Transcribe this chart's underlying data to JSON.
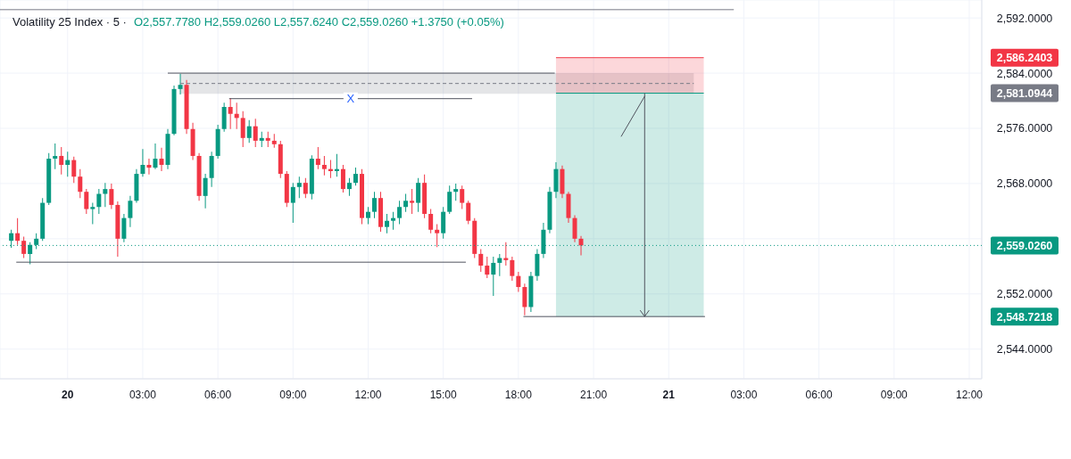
{
  "chart_data": {
    "type": "candlestick",
    "title": "Volatility 25 Index · 5 ·",
    "subtitle": "O2,557.7780 H2,559.0260 L2,557.6240 C2,559.0260 +1.3750 (+0.05%)",
    "x": [
      "--01-19T21:45",
      "--01-19T22:00",
      "--01-19T22:15",
      "--01-19T22:30",
      "--01-19T22:45",
      "--01-19T23:00",
      "--01-19T23:15",
      "--01-19T23:30",
      "--01-19T23:45",
      "--01-20T00:00",
      "--01-20T00:15",
      "--01-20T00:30",
      "--01-20T00:45",
      "--01-20T01:00",
      "--01-20T01:15",
      "--01-20T01:30",
      "--01-20T01:45",
      "--01-20T02:00",
      "--01-20T02:15",
      "--01-20T02:30",
      "--01-20T02:45",
      "--01-20T03:00",
      "--01-20T03:15",
      "--01-20T03:30",
      "--01-20T03:45",
      "--01-20T04:00",
      "--01-20T04:15",
      "--01-20T04:30",
      "--01-20T04:45",
      "--01-20T05:00",
      "--01-20T05:15",
      "--01-20T05:30",
      "--01-20T05:45",
      "--01-20T06:00",
      "--01-20T06:15",
      "--01-20T06:30",
      "--01-20T06:45",
      "--01-20T07:00",
      "--01-20T07:15",
      "--01-20T07:30",
      "--01-20T07:45",
      "--01-20T08:00",
      "--01-20T08:15",
      "--01-20T08:30",
      "--01-20T08:45",
      "--01-20T09:00",
      "--01-20T09:15",
      "--01-20T09:30",
      "--01-20T09:45",
      "--01-20T10:00",
      "--01-20T10:15",
      "--01-20T10:30",
      "--01-20T10:45",
      "--01-20T11:00",
      "--01-20T11:15",
      "--01-20T11:30",
      "--01-20T11:45",
      "--01-20T12:00",
      "--01-20T12:15",
      "--01-20T12:30",
      "--01-20T12:45",
      "--01-20T13:00",
      "--01-20T13:15",
      "--01-20T13:30",
      "--01-20T13:45",
      "--01-20T14:00",
      "--01-20T14:15",
      "--01-20T14:30",
      "--01-20T14:45",
      "--01-20T15:00",
      "--01-20T15:15",
      "--01-20T15:30",
      "--01-20T15:45",
      "--01-20T16:00",
      "--01-20T16:15",
      "--01-20T16:30",
      "--01-20T16:45",
      "--01-20T17:00",
      "--01-20T17:15",
      "--01-20T17:30",
      "--01-20T17:45",
      "--01-20T18:00",
      "--01-20T18:15",
      "--01-20T18:30",
      "--01-20T18:45",
      "--01-20T19:00",
      "--01-20T19:15",
      "--01-20T19:30",
      "--01-20T19:45",
      "--01-20T20:00",
      "--01-20T20:15",
      "--01-20T20:30"
    ],
    "ohlc": [
      [
        2559.7,
        2561.3,
        2558.7,
        2560.8
      ],
      [
        2560.8,
        2563.0,
        2559.1,
        2559.7
      ],
      [
        2559.7,
        2560.3,
        2557.2,
        2557.8
      ],
      [
        2557.8,
        2559.5,
        2556.3,
        2559.1
      ],
      [
        2559.1,
        2560.8,
        2558.5,
        2560.0
      ],
      [
        2560.0,
        2565.9,
        2559.7,
        2565.2
      ],
      [
        2565.2,
        2572.4,
        2564.9,
        2571.6
      ],
      [
        2571.6,
        2573.8,
        2570.1,
        2572.0
      ],
      [
        2572.0,
        2573.3,
        2569.3,
        2570.7
      ],
      [
        2570.7,
        2572.6,
        2569.0,
        2571.4
      ],
      [
        2571.4,
        2571.9,
        2568.1,
        2569.0
      ],
      [
        2569.0,
        2570.1,
        2565.9,
        2566.8
      ],
      [
        2566.8,
        2567.2,
        2563.6,
        2564.3
      ],
      [
        2564.3,
        2565.2,
        2562.1,
        2564.6
      ],
      [
        2564.6,
        2567.2,
        2563.6,
        2566.5
      ],
      [
        2566.5,
        2568.1,
        2564.6,
        2567.2
      ],
      [
        2567.2,
        2568.0,
        2564.3,
        2564.9
      ],
      [
        2564.9,
        2565.4,
        2557.4,
        2560.0
      ],
      [
        2560.0,
        2563.6,
        2559.5,
        2563.0
      ],
      [
        2563.0,
        2566.2,
        2561.7,
        2565.5
      ],
      [
        2565.5,
        2570.1,
        2565.2,
        2569.4
      ],
      [
        2569.4,
        2573.0,
        2569.0,
        2570.7
      ],
      [
        2570.7,
        2571.6,
        2569.3,
        2570.3
      ],
      [
        2570.3,
        2573.8,
        2570.1,
        2571.6
      ],
      [
        2571.6,
        2573.2,
        2569.8,
        2570.7
      ],
      [
        2570.7,
        2575.9,
        2570.1,
        2575.2
      ],
      [
        2575.2,
        2582.2,
        2575.0,
        2581.7
      ],
      [
        2581.7,
        2583.9,
        2580.9,
        2582.3
      ],
      [
        2582.3,
        2583.0,
        2575.2,
        2575.9
      ],
      [
        2575.9,
        2576.8,
        2571.4,
        2572.0
      ],
      [
        2572.0,
        2572.4,
        2565.5,
        2566.2
      ],
      [
        2566.2,
        2569.4,
        2564.4,
        2568.8
      ],
      [
        2568.8,
        2572.6,
        2567.5,
        2572.0
      ],
      [
        2572.0,
        2576.5,
        2571.6,
        2575.9
      ],
      [
        2575.9,
        2579.7,
        2575.5,
        2579.1
      ],
      [
        2579.1,
        2580.4,
        2575.9,
        2578.1
      ],
      [
        2578.1,
        2579.7,
        2575.9,
        2577.5
      ],
      [
        2577.5,
        2578.5,
        2573.3,
        2574.6
      ],
      [
        2574.6,
        2577.2,
        2573.9,
        2576.3
      ],
      [
        2576.3,
        2577.4,
        2573.3,
        2574.2
      ],
      [
        2574.2,
        2575.5,
        2573.3,
        2574.6
      ],
      [
        2574.6,
        2575.5,
        2573.3,
        2574.2
      ],
      [
        2574.2,
        2575.2,
        2573.2,
        2573.7
      ],
      [
        2573.7,
        2574.2,
        2568.8,
        2569.4
      ],
      [
        2569.4,
        2569.8,
        2564.6,
        2565.2
      ],
      [
        2565.2,
        2568.1,
        2562.3,
        2567.5
      ],
      [
        2567.5,
        2569.0,
        2565.9,
        2568.1
      ],
      [
        2568.1,
        2568.8,
        2565.9,
        2566.5
      ],
      [
        2566.5,
        2572.1,
        2565.7,
        2571.6
      ],
      [
        2571.6,
        2573.3,
        2570.1,
        2570.7
      ],
      [
        2570.7,
        2572.0,
        2569.2,
        2570.1
      ],
      [
        2570.1,
        2571.4,
        2568.8,
        2569.8
      ],
      [
        2569.8,
        2572.3,
        2569.0,
        2570.1
      ],
      [
        2570.1,
        2570.7,
        2566.7,
        2567.2
      ],
      [
        2567.2,
        2568.8,
        2566.2,
        2568.1
      ],
      [
        2568.1,
        2570.3,
        2567.7,
        2569.4
      ],
      [
        2569.4,
        2570.1,
        2562.1,
        2563.0
      ],
      [
        2563.0,
        2564.6,
        2562.1,
        2563.9
      ],
      [
        2563.9,
        2566.8,
        2563.0,
        2565.9
      ],
      [
        2565.9,
        2566.8,
        2561.0,
        2561.7
      ],
      [
        2561.7,
        2563.6,
        2560.8,
        2562.6
      ],
      [
        2562.6,
        2563.9,
        2561.3,
        2563.0
      ],
      [
        2563.0,
        2565.5,
        2562.1,
        2564.6
      ],
      [
        2564.6,
        2566.5,
        2563.9,
        2565.5
      ],
      [
        2565.5,
        2567.2,
        2563.6,
        2565.2
      ],
      [
        2565.2,
        2568.8,
        2563.9,
        2568.1
      ],
      [
        2568.1,
        2569.3,
        2563.0,
        2563.6
      ],
      [
        2563.6,
        2564.3,
        2560.8,
        2561.3
      ],
      [
        2561.3,
        2562.1,
        2558.8,
        2560.8
      ],
      [
        2560.8,
        2564.6,
        2560.0,
        2563.9
      ],
      [
        2563.9,
        2567.7,
        2563.6,
        2566.8
      ],
      [
        2566.8,
        2568.0,
        2565.5,
        2567.2
      ],
      [
        2567.2,
        2567.7,
        2564.3,
        2565.2
      ],
      [
        2565.2,
        2565.5,
        2562.1,
        2562.6
      ],
      [
        2562.6,
        2563.0,
        2557.2,
        2557.8
      ],
      [
        2557.8,
        2558.5,
        2555.2,
        2556.1
      ],
      [
        2556.1,
        2557.4,
        2554.3,
        2554.8
      ],
      [
        2554.8,
        2557.4,
        2551.7,
        2556.5
      ],
      [
        2556.5,
        2557.8,
        2554.6,
        2557.2
      ],
      [
        2557.2,
        2559.5,
        2556.1,
        2556.9
      ],
      [
        2556.9,
        2557.4,
        2553.9,
        2554.6
      ],
      [
        2554.6,
        2555.2,
        2552.3,
        2553.0
      ],
      [
        2553.0,
        2553.5,
        2548.9,
        2550.1
      ],
      [
        2550.1,
        2555.2,
        2549.4,
        2554.6
      ],
      [
        2554.6,
        2558.5,
        2553.9,
        2557.8
      ],
      [
        2557.8,
        2562.3,
        2557.2,
        2561.3
      ],
      [
        2561.3,
        2567.5,
        2560.8,
        2566.8
      ],
      [
        2566.8,
        2571.1,
        2565.9,
        2570.1
      ],
      [
        2570.1,
        2570.6,
        2565.9,
        2566.5
      ],
      [
        2566.5,
        2566.8,
        2562.3,
        2563.0
      ],
      [
        2563.0,
        2563.4,
        2559.5,
        2560.0
      ],
      [
        2560.0,
        2560.4,
        2557.6,
        2559.026
      ]
    ],
    "colors": [
      "#089981",
      "#f23645",
      "#f23645",
      "#089981",
      "#089981",
      "#089981",
      "#089981",
      "#089981",
      "#f23645",
      "#089981",
      "#f23645",
      "#f23645",
      "#f23645",
      "#089981",
      "#089981",
      "#089981",
      "#f23645",
      "#f23645",
      "#089981",
      "#089981",
      "#089981",
      "#089981",
      "#f23645",
      "#089981",
      "#f23645",
      "#089981",
      "#089981",
      "#089981",
      "#f23645",
      "#f23645",
      "#f23645",
      "#089981",
      "#089981",
      "#089981",
      "#089981",
      "#f23645",
      "#f23645",
      "#f23645",
      "#089981",
      "#f23645",
      "#089981",
      "#f23645",
      "#f23645",
      "#f23645",
      "#f23645",
      "#089981",
      "#089981",
      "#f23645",
      "#089981",
      "#f23645",
      "#f23645",
      "#f23645",
      "#089981",
      "#f23645",
      "#089981",
      "#089981",
      "#f23645",
      "#089981",
      "#089981",
      "#f23645",
      "#089981",
      "#089981",
      "#089981",
      "#089981",
      "#f23645",
      "#089981",
      "#f23645",
      "#f23645",
      "#f23645",
      "#089981",
      "#089981",
      "#089981",
      "#f23645",
      "#f23645",
      "#f23645",
      "#f23645",
      "#f23645",
      "#089981",
      "#089981",
      "#f23645",
      "#f23645",
      "#f23645",
      "#f23645",
      "#089981",
      "#089981",
      "#089981",
      "#089981",
      "#089981",
      "#f23645",
      "#f23645",
      "#f23645",
      "#f23645"
    ],
    "series": [
      {
        "type": "line",
        "x": [
          "--01-19T21:18",
          "--01-21T02:36"
        ],
        "values": [
          2593.2,
          2593.2
        ],
        "color": "#787b86"
      },
      {
        "type": "line",
        "x": [
          "--01-20T04:30",
          "--01-21T01:00"
        ],
        "values": [
          2582.5,
          2582.5
        ],
        "lower": [
          2581,
          2581
        ],
        "upper": [
          2584,
          2584
        ],
        "color": "#787b86",
        "line_style": "dashed"
      },
      {
        "type": "line",
        "x": [
          "--01-20T04:00",
          "--01-20T19:27"
        ],
        "values": [
          2584,
          2584
        ],
        "color": "#50535e"
      },
      {
        "type": "line",
        "x": [
          "--01-20T06:27",
          "--01-20T16:09"
        ],
        "values": [
          2580.3,
          2580.3
        ],
        "color": "#50535e"
      },
      {
        "type": "line",
        "x": [
          "--01-19T21:57",
          "--01-20T15:54"
        ],
        "values": [
          2556.6,
          2556.6
        ],
        "color": "#50535e"
      },
      {
        "type": "line",
        "x": [
          "--01-20T19:30",
          "--01-21T01:24"
        ],
        "values": [
          2586.2403,
          2586.2403
        ],
        "lower": [
          2581.0944,
          2581.0944
        ],
        "upper": [
          2586.2403,
          2586.2403
        ],
        "color": "#f23645"
      },
      {
        "type": "line",
        "x": [
          "--01-20T19:30",
          "--01-21T01:24"
        ],
        "values": [
          2581.0944,
          2581.0944
        ],
        "lower": [
          2548.7218,
          2548.7218
        ],
        "upper": [
          2581.0944,
          2581.0944
        ],
        "color": "#089981"
      },
      {
        "type": "line",
        "x": [
          "--01-20T18:12",
          "--01-21T01:27"
        ],
        "values": [
          2548.7218,
          2548.7218
        ],
        "color": "#50535e"
      },
      {
        "type": "line",
        "x": [
          "--01-20T22:06",
          "--01-20T23:03"
        ],
        "values": [
          2574.8,
          2580.7
        ],
        "color": "#50535e"
      }
    ],
    "ref_lines": [
      {
        "axis": "y",
        "value": 2559.026,
        "label": "2,559.0260",
        "color": "#089981",
        "line_style": "dotted"
      }
    ],
    "annotations": [
      {
        "text": "X",
        "x": "--01-20T11:18",
        "y": 2580.3
      }
    ],
    "xlim": [
      "--01-19T21:18",
      "--01-21T12:30"
    ],
    "ylim": [
      2539.7,
      2594.6
    ],
    "y2lim": [
      2539.7,
      2594.6
    ],
    "xticks": [
      {
        "value": "--01-20",
        "label": "20"
      },
      {
        "value": "--01-20T03:00",
        "label": "03:00"
      },
      {
        "value": "--01-20T06:00",
        "label": "06:00"
      },
      {
        "value": "--01-20T09:00",
        "label": "09:00"
      },
      {
        "value": "--01-20T12:00",
        "label": "12:00"
      },
      {
        "value": "--01-20T15:00",
        "label": "15:00"
      },
      {
        "value": "--01-20T18:00",
        "label": "18:00"
      },
      {
        "value": "--01-20T21:00",
        "label": "21:00"
      },
      {
        "value": "--01-21",
        "label": "21"
      },
      {
        "value": "--01-21T03:00",
        "label": "03:00"
      },
      {
        "value": "--01-21T06:00",
        "label": "06:00"
      },
      {
        "value": "--01-21T09:00",
        "label": "09:00"
      },
      {
        "value": "--01-21T12:00",
        "label": "12:00"
      }
    ],
    "yticks": [
      {
        "value": 2544,
        "label": "2,544.0000"
      },
      {
        "value": 2552,
        "label": "2,552.0000"
      },
      {
        "value": 2560,
        "label": null
      },
      {
        "value": 2568,
        "label": "2,568.0000"
      },
      {
        "value": 2576,
        "label": "2,576.0000"
      },
      {
        "value": 2584,
        "label": "2,584.0000"
      },
      {
        "value": 2592,
        "label": "2,592.0000"
      }
    ],
    "y2ticks": [
      {
        "value": 2586.2403,
        "label": "2,586.2403"
      },
      {
        "value": 2581.0944,
        "label": "2,581.0944"
      },
      {
        "value": 2548.7218,
        "label": "2,548.7218"
      }
    ],
    "grid": true
  }
}
